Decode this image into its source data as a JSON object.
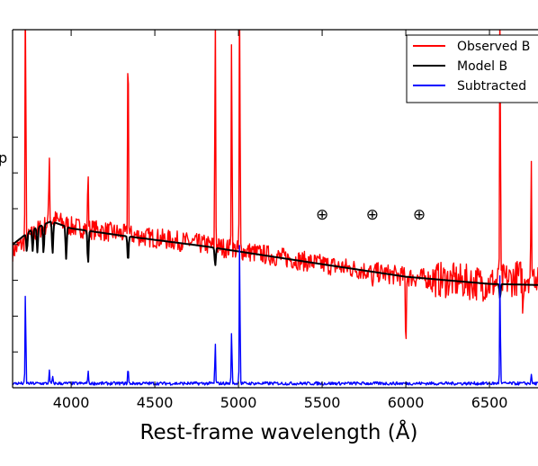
{
  "chart_data": {
    "type": "line",
    "title": "",
    "xlabel": "Rest-frame wavelength (Å)",
    "ylabel": "",
    "xlim": [
      3650,
      6790
    ],
    "ylim": [
      0,
      100
    ],
    "x_ticks": [
      4000,
      4500,
      5000,
      5500,
      6000,
      6500
    ],
    "x_tick_labels": [
      "4000",
      "4500",
      "5000",
      "5500",
      "6000",
      "6500"
    ],
    "y_ticks": [
      10,
      20,
      30,
      40,
      50,
      60,
      70
    ],
    "y_edge_label": "p",
    "legend": {
      "placement": "top-right"
    },
    "annotations": [
      {
        "text": "⊕",
        "x": 5500,
        "y": 47
      },
      {
        "text": "⊕",
        "x": 5800,
        "y": 47
      },
      {
        "text": "⊕",
        "x": 6080,
        "y": 47
      }
    ],
    "series": [
      {
        "name": "Observed B",
        "legend_label": "Observed B",
        "color": "#ff0000",
        "noise": 2.8,
        "continuum": [
          [
            3650,
            38
          ],
          [
            3800,
            44
          ],
          [
            3900,
            47
          ],
          [
            4000,
            45
          ],
          [
            4300,
            43
          ],
          [
            4800,
            40
          ],
          [
            5500,
            34.5
          ],
          [
            6000,
            31
          ],
          [
            6500,
            29
          ],
          [
            6790,
            32
          ]
        ],
        "noisy_regions": [
          [
            6150,
            6790,
            5
          ]
        ],
        "spikes": [
          [
            3727,
            116
          ],
          [
            3869,
            68
          ],
          [
            4101,
            62
          ],
          [
            4340,
            108
          ],
          [
            4861,
            110
          ],
          [
            4959,
            104
          ],
          [
            5007,
            118
          ],
          [
            5800,
            25
          ],
          [
            6000,
            8
          ],
          [
            6563,
            115
          ],
          [
            6700,
            18
          ],
          [
            6750,
            60
          ]
        ]
      },
      {
        "name": "Model B",
        "legend_label": "Model B",
        "color": "#000000",
        "noise": 0,
        "continuum": [
          [
            3650,
            40
          ],
          [
            3760,
            44
          ],
          [
            3880,
            46.5
          ],
          [
            4000,
            44.5
          ],
          [
            4300,
            42.5
          ],
          [
            4800,
            39.5
          ],
          [
            5500,
            34.5
          ],
          [
            6000,
            31
          ],
          [
            6500,
            29
          ],
          [
            6790,
            28.7
          ]
        ],
        "absorption": [
          [
            3735,
            5
          ],
          [
            3770,
            6
          ],
          [
            3798,
            7
          ],
          [
            3835,
            8
          ],
          [
            3889,
            9
          ],
          [
            3970,
            9
          ],
          [
            4101,
            9
          ],
          [
            4340,
            7
          ],
          [
            4861,
            5
          ],
          [
            6563,
            4
          ]
        ]
      },
      {
        "name": "Subtracted B",
        "legend_label": "Subtracted",
        "color": "#0000ff",
        "noise": 0.45,
        "baseline": 1.2,
        "spikes": [
          [
            3727,
            28
          ],
          [
            3869,
            5
          ],
          [
            3889,
            3
          ],
          [
            4101,
            5
          ],
          [
            4340,
            6
          ],
          [
            4861,
            13
          ],
          [
            4959,
            17
          ],
          [
            5007,
            44
          ],
          [
            6563,
            34
          ],
          [
            6750,
            4
          ]
        ]
      }
    ]
  }
}
